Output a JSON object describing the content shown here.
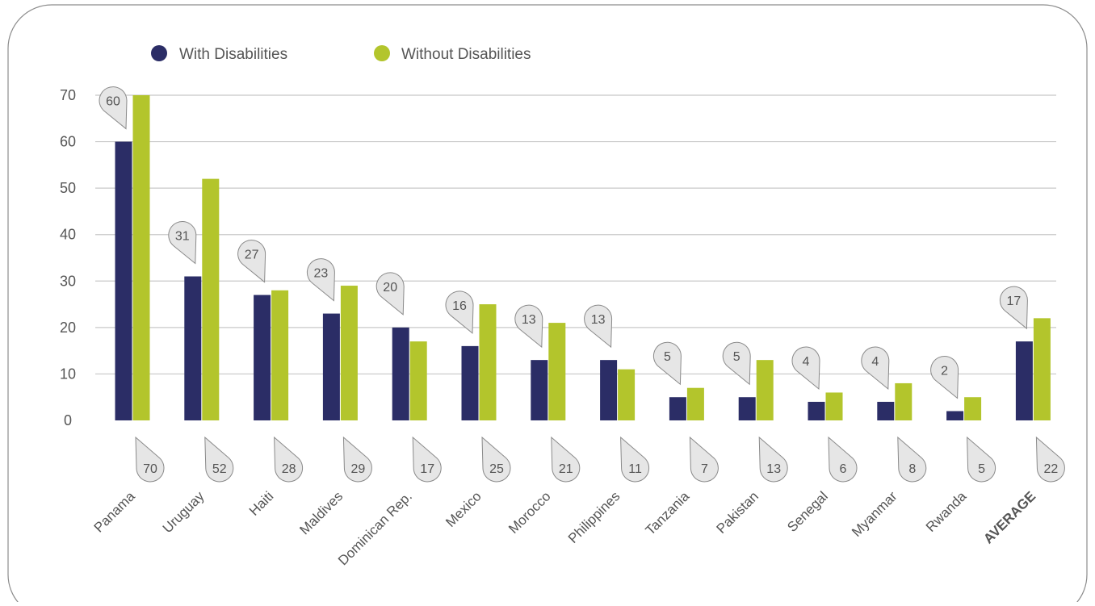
{
  "chart_data": {
    "type": "bar",
    "categories": [
      "Panama",
      "Uruguay",
      "Haiti",
      "Maldives",
      "Dominican Rep.",
      "Mexico",
      "Morocco",
      "Philippines",
      "Tanzania",
      "Pakistan",
      "Senegal",
      "Myanmar",
      "Rwanda",
      "AVERAGE"
    ],
    "series": [
      {
        "name": "With Disabilities",
        "color": "#2b2d66",
        "values": [
          60,
          31,
          27,
          23,
          20,
          16,
          13,
          13,
          5,
          5,
          4,
          4,
          2,
          17
        ]
      },
      {
        "name": "Without Disabilities",
        "color": "#b3c52c",
        "values": [
          70,
          52,
          28,
          29,
          17,
          25,
          21,
          11,
          7,
          13,
          6,
          8,
          5,
          22
        ]
      }
    ],
    "yticks": [
      "0",
      "10",
      "20",
      "30",
      "40",
      "50",
      "60",
      "70"
    ],
    "ylim": [
      0,
      70
    ],
    "grid": true,
    "legend": "top-left",
    "bold_categories": [
      "AVERAGE"
    ],
    "title": "",
    "xlabel": "",
    "ylabel": ""
  }
}
